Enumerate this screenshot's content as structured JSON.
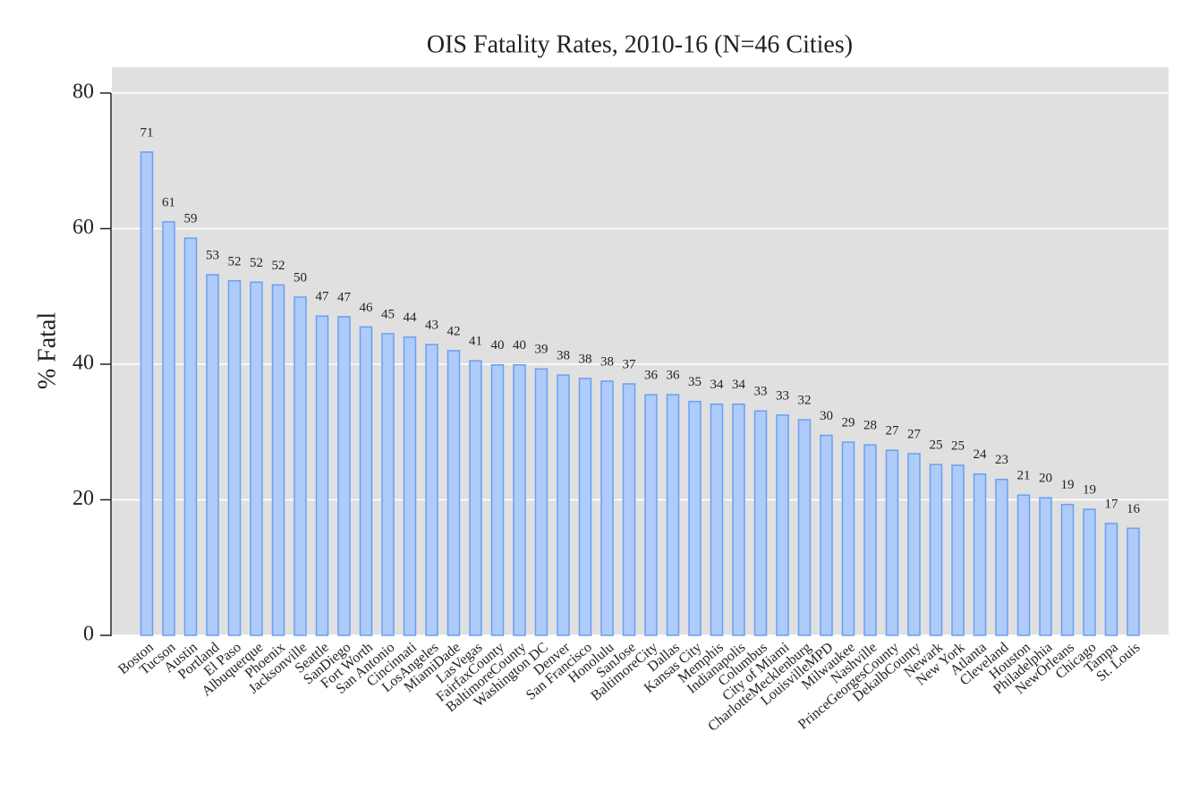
{
  "chart_data": {
    "type": "bar",
    "title": "OIS Fatality Rates, 2010-16 (N=46 Cities)",
    "y_label": "% Fatal",
    "categories": [
      "Boston",
      "Tucson",
      "Austin",
      "Portland",
      "El Paso",
      "Albuquerque",
      "Phoenix",
      "Jacksonville",
      "Seattle",
      "SanDiego",
      "Fort Worth",
      "San Antonio",
      "Cincinnati",
      "LosAngeles",
      "MiamiDade",
      "LasVegas",
      "FairfaxCounty",
      "BaltimoreCounty",
      "Washington DC",
      "Denver",
      "San Francisco",
      "Honolulu",
      "SanJose",
      "BaltimoreCity",
      "Dallas",
      "Kansas City",
      "Memphis",
      "Indianapolis",
      "Columbus",
      "City of Miami",
      "CharlotteMecklenburg",
      "LouisvilleMPD",
      "Milwaukee",
      "Nashville",
      "PrinceGeorgesCounty",
      "DekalbCounty",
      "Newark",
      "New York",
      "Atlanta",
      "Cleveland",
      "Houston",
      "Philadelphia",
      "NewOrleans",
      "Chicago",
      "Tampa",
      "St. Louis"
    ],
    "values": [
      71.3,
      61.0,
      58.6,
      53.2,
      52.3,
      52.1,
      51.7,
      49.9,
      47.1,
      47.0,
      45.5,
      44.5,
      44.0,
      42.9,
      42.0,
      40.5,
      39.9,
      39.9,
      39.3,
      38.4,
      37.9,
      37.5,
      37.1,
      35.5,
      35.5,
      34.5,
      34.1,
      34.1,
      33.1,
      32.5,
      31.8,
      29.5,
      28.5,
      28.1,
      27.3,
      26.8,
      25.2,
      25.1,
      23.8,
      23.0,
      20.7,
      20.3,
      19.3,
      18.6,
      16.5,
      15.8
    ],
    "value_labels": [
      "71",
      "61",
      "59",
      "53",
      "52",
      "52",
      "52",
      "50",
      "47",
      "47",
      "46",
      "45",
      "44",
      "43",
      "42",
      "41",
      "40",
      "40",
      "39",
      "38",
      "38",
      "38",
      "37",
      "36",
      "36",
      "35",
      "34",
      "34",
      "33",
      "33",
      "32",
      "30",
      "29",
      "28",
      "27",
      "27",
      "25",
      "25",
      "24",
      "23",
      "21",
      "20",
      "19",
      "19",
      "17",
      "16"
    ],
    "color": "#aecbfa",
    "edge_color": "#6b9ff0",
    "ylim": [
      0,
      80
    ],
    "yticks": [
      0,
      20,
      40,
      60,
      80
    ],
    "grid": true
  }
}
